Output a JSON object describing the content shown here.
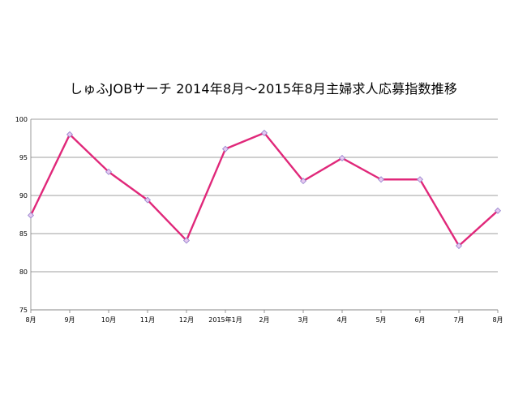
{
  "chart_data": {
    "type": "line",
    "title": "しゅふJOBサーチ  2014年8月～2015年8月主婦求人応募指数推移",
    "xlabel": "",
    "ylabel": "",
    "categories": [
      "8月",
      "9月",
      "10月",
      "11月",
      "12月",
      "2015年1月",
      "2月",
      "3月",
      "4月",
      "5月",
      "6月",
      "7月",
      "8月"
    ],
    "series": [
      {
        "values": [
          87.4,
          98.0,
          93.1,
          89.4,
          84.1,
          96.1,
          98.2,
          91.9,
          94.9,
          92.1,
          92.1,
          83.4,
          88.0
        ]
      }
    ],
    "ylim": [
      75,
      100
    ],
    "yticks": [
      75,
      80,
      85,
      90,
      95,
      100
    ],
    "grid": true,
    "legend": "none",
    "colors": {
      "line": "#e0287a",
      "marker_fill": "#e8c8f0",
      "marker_stroke": "#9a8ad0",
      "grid": "#7f7f7f"
    }
  }
}
